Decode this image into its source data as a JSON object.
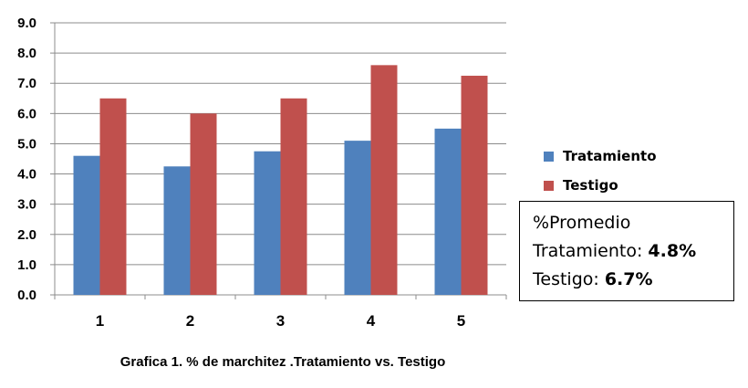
{
  "chart_data": {
    "type": "bar",
    "categories": [
      "1",
      "2",
      "3",
      "4",
      "5"
    ],
    "series": [
      {
        "name": "Tratamiento",
        "values": [
          4.6,
          4.25,
          4.75,
          5.1,
          5.5
        ],
        "color": "#4F81BD"
      },
      {
        "name": "Testigo",
        "values": [
          6.5,
          6.0,
          6.5,
          7.6,
          7.25
        ],
        "color": "#C0504D"
      }
    ],
    "ylim": [
      0,
      9
    ],
    "yticks": [
      "0.0",
      "1.0",
      "2.0",
      "3.0",
      "4.0",
      "5.0",
      "6.0",
      "7.0",
      "8.0",
      "9.0"
    ],
    "grid": true,
    "legend_position": "right",
    "caption": "Grafica 1. % de marchitez .Tratamiento vs. Testigo"
  },
  "legend": {
    "items": [
      {
        "label": "Tratamiento",
        "color": "#4F81BD"
      },
      {
        "label": "Testigo",
        "color": "#C0504D"
      }
    ]
  },
  "summary": {
    "heading": "%Promedio",
    "tratamiento_label": "Tratamiento: ",
    "tratamiento_value": "4.8%",
    "testigo_label": "Testigo: ",
    "testigo_value": "6.7%"
  }
}
